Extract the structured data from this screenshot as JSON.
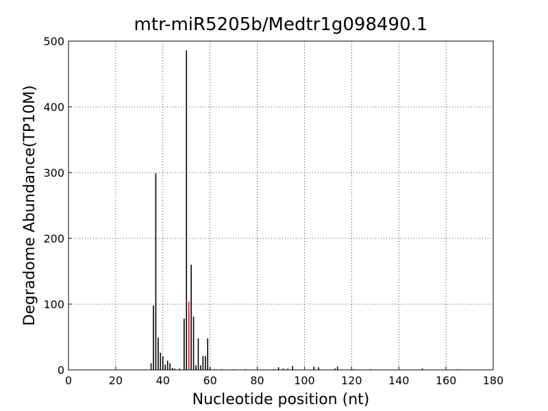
{
  "chart_data": {
    "type": "bar",
    "title": "mtr-miR5205b/Medtr1g098490.1",
    "x_label": "Nucleotide position (nt)",
    "y_label": "Degradome Abundance(TP10M)",
    "x": [
      35,
      36,
      37,
      38,
      39,
      40,
      41,
      42,
      43,
      44,
      45,
      47,
      49,
      50,
      51,
      52,
      53,
      54,
      55,
      56,
      57,
      58,
      59,
      60,
      62,
      65,
      70,
      75,
      87,
      89,
      91,
      93,
      95,
      104,
      106,
      113,
      114,
      121,
      128,
      150,
      165
    ],
    "values": [
      10,
      98,
      299,
      49,
      26,
      21,
      8,
      14,
      10,
      3,
      2,
      2,
      78,
      486,
      104,
      160,
      81,
      7,
      48,
      7,
      21,
      21,
      48,
      3,
      1,
      1,
      1,
      1,
      1,
      4,
      2,
      2,
      6,
      5,
      4,
      2,
      5,
      1,
      1,
      2,
      1
    ],
    "colors": [
      "#000000",
      "#000000",
      "#000000",
      "#000000",
      "#000000",
      "#000000",
      "#000000",
      "#000000",
      "#000000",
      "#000000",
      "#000000",
      "#000000",
      "#000000",
      "#000000",
      "#ff0000",
      "#000000",
      "#000000",
      "#000000",
      "#000000",
      "#000000",
      "#000000",
      "#000000",
      "#000000",
      "#000000",
      "#000000",
      "#000000",
      "#000000",
      "#000000",
      "#000000",
      "#000000",
      "#000000",
      "#000000",
      "#000000",
      "#000000",
      "#000000",
      "#000000",
      "#000000",
      "#000000",
      "#000000",
      "#000000",
      "#000000"
    ],
    "xlim": [
      0,
      180
    ],
    "xticks": [
      0,
      20,
      40,
      60,
      80,
      100,
      120,
      140,
      160,
      180
    ],
    "ylim": [
      0,
      500
    ],
    "yticks": [
      0,
      100,
      200,
      300,
      400,
      500
    ],
    "grid": true
  }
}
